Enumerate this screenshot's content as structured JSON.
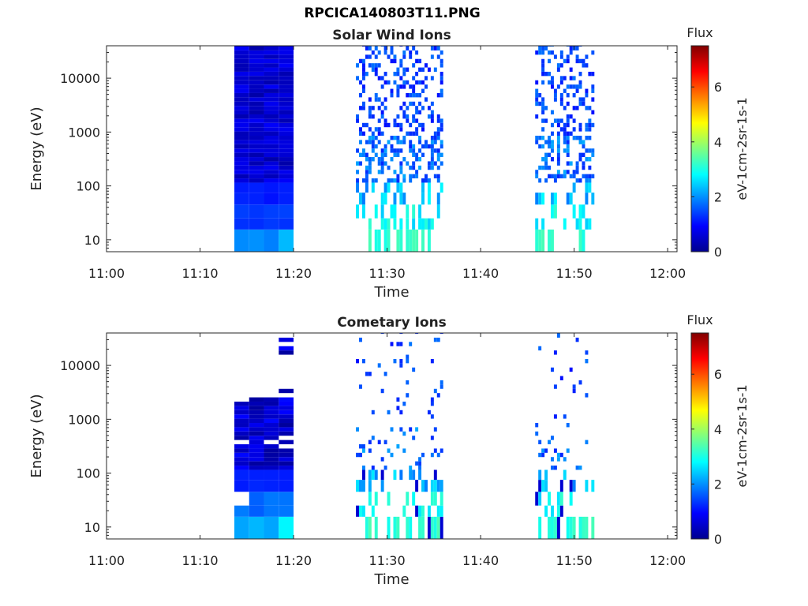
{
  "figure": {
    "title": "RPCICA140803T11.PNG"
  },
  "chart_data": [
    {
      "type": "heatmap",
      "title": "Solar Wind Ions",
      "xlabel": "Time",
      "ylabel": "Energy (eV)",
      "x_ticks": [
        "11:00",
        "11:10",
        "11:20",
        "11:30",
        "11:40",
        "11:50",
        "12:00"
      ],
      "xlim": [
        "11:00",
        "12:01"
      ],
      "y_scale": "log",
      "y_ticks": [
        "10",
        "100",
        "1000",
        "10000"
      ],
      "ylim": [
        6,
        40000
      ],
      "colorbar": {
        "title": "Flux",
        "label": "eV-1cm-2sr-1s-1",
        "range": [
          0,
          7.5
        ],
        "ticks": [
          "0",
          "2",
          "4",
          "6"
        ],
        "colormap": "jet"
      },
      "data_intervals": [
        {
          "start": "11:13:40",
          "end": "11:20:00",
          "description": "dense block, flux approx 0.3-2, higher near 10 eV"
        },
        {
          "start": "11:26:40",
          "end": "11:36:00",
          "description": "sparse, flux approx 1-3.5"
        },
        {
          "start": "11:45:50",
          "end": "11:52:00",
          "description": "sparse, flux approx 1-3.5"
        }
      ]
    },
    {
      "type": "heatmap",
      "title": "Cometary Ions",
      "xlabel": "Time",
      "ylabel": "Energy (eV)",
      "x_ticks": [
        "11:00",
        "11:10",
        "11:20",
        "11:30",
        "11:40",
        "11:50",
        "12:00"
      ],
      "xlim": [
        "11:00",
        "12:01"
      ],
      "y_scale": "log",
      "y_ticks": [
        "10",
        "100",
        "1000",
        "10000"
      ],
      "ylim": [
        6,
        40000
      ],
      "colorbar": {
        "title": "Flux",
        "label": "eV-1cm-2sr-1s-1",
        "range": [
          0,
          7.5
        ],
        "ticks": [
          "0",
          "2",
          "4",
          "6"
        ],
        "colormap": "jet"
      },
      "data_intervals": [
        {
          "start": "11:13:40",
          "end": "11:20:00",
          "description": "block below approx 3000 eV, flux approx 0.2-2.8"
        },
        {
          "start": "11:26:40",
          "end": "11:36:00",
          "description": "sparse, flux approx 1-3.2"
        },
        {
          "start": "11:45:50",
          "end": "11:52:00",
          "description": "sparse, flux approx 0.8-3.2"
        }
      ]
    }
  ]
}
